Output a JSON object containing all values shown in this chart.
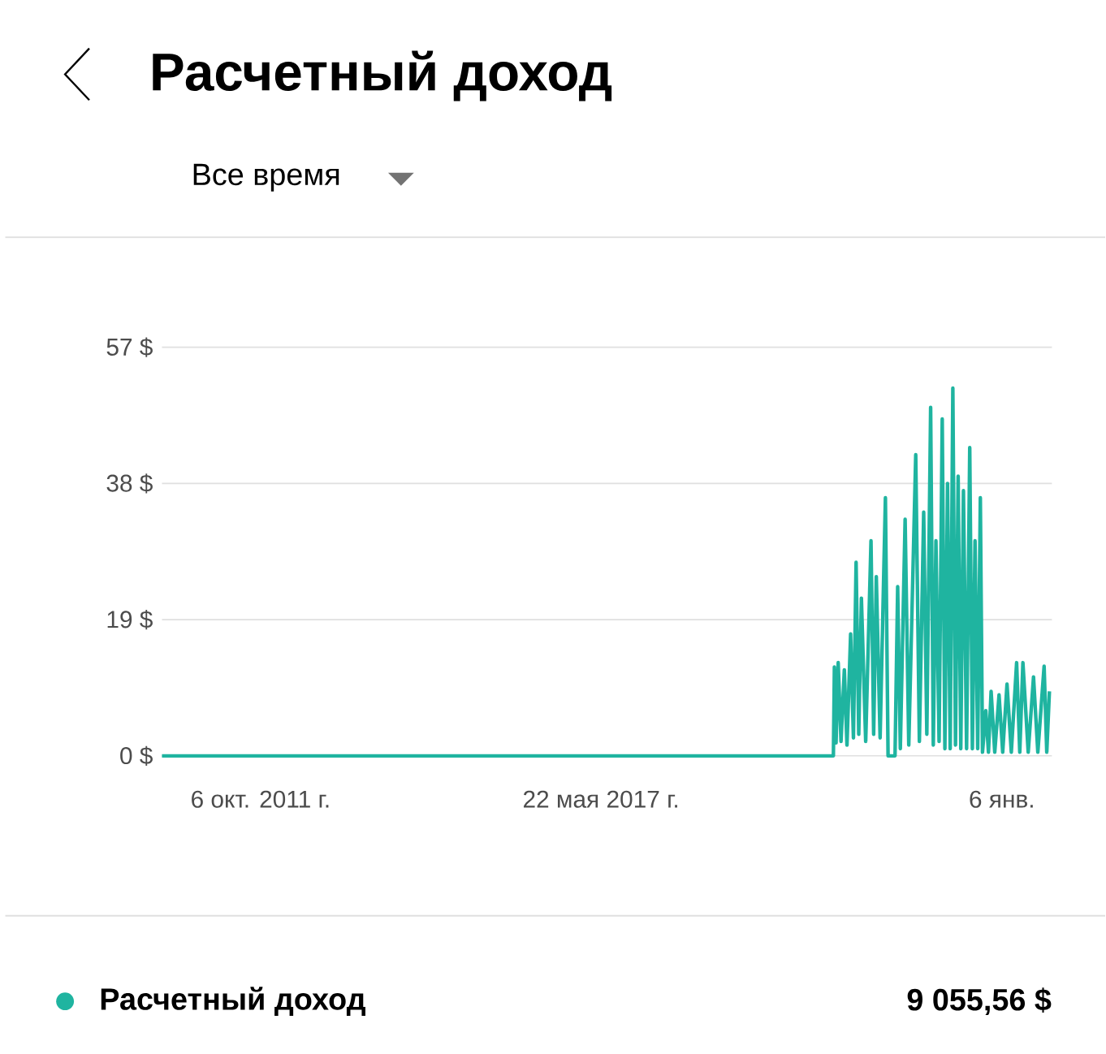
{
  "chart_data": {
    "type": "line",
    "title": "Расчетный доход",
    "subtitle": "Все время",
    "xlim": [
      "2010-02-18",
      "2024-11-03"
    ],
    "xticks": [
      {
        "value": "2011-10-06",
        "label": "6 окт. 2011 г."
      },
      {
        "value": "2017-05-22",
        "label": "22 мая 2017 г."
      },
      {
        "value": "2024-01-06",
        "label": "6 янв."
      }
    ],
    "ylim": [
      0,
      57
    ],
    "yticks": [
      {
        "value": 0,
        "label": "0 $"
      },
      {
        "value": 19,
        "label": "19 $"
      },
      {
        "value": 38,
        "label": "38 $"
      },
      {
        "value": 57,
        "label": "57 $"
      }
    ],
    "grid": "y",
    "legend": "bottom left",
    "annotations": [
      "9 055,56 $"
    ],
    "series": [
      {
        "name": "Расчетный доход",
        "color": "#1fb4a0",
        "x": [
          "2010-02-18",
          "2021-03-25",
          "2021-03-31",
          "2021-04-10",
          "2021-04-23",
          "2021-05-10",
          "2021-05-30",
          "2021-06-15",
          "2021-07-07",
          "2021-07-24",
          "2021-08-09",
          "2021-08-25",
          "2021-09-10",
          "2021-10-06",
          "2021-11-07",
          "2021-11-23",
          "2021-12-09",
          "2022-01-01",
          "2022-02-02",
          "2022-02-18",
          "2022-04-01",
          "2022-04-17",
          "2022-05-03",
          "2022-06-01",
          "2022-06-23",
          "2022-08-04",
          "2022-08-26",
          "2022-09-21",
          "2022-10-10",
          "2022-11-02",
          "2022-11-18",
          "2022-12-04",
          "2022-12-23",
          "2023-01-11",
          "2023-01-27",
          "2023-02-12",
          "2023-02-28",
          "2023-03-16",
          "2023-04-01",
          "2023-04-17",
          "2023-05-03",
          "2023-05-19",
          "2023-06-07",
          "2023-06-26",
          "2023-07-12",
          "2023-07-28",
          "2023-08-13",
          "2023-08-29",
          "2023-09-11",
          "2023-10-01",
          "2023-10-17",
          "2023-11-02",
          "2023-11-24",
          "2023-12-20",
          "2024-01-11",
          "2024-02-06",
          "2024-03-03",
          "2024-04-04",
          "2024-04-23",
          "2024-05-12",
          "2024-06-13",
          "2024-07-15",
          "2024-08-10",
          "2024-09-17",
          "2024-10-03",
          "2024-10-19"
        ],
        "values": [
          0,
          0,
          12.4,
          1.8,
          13,
          2,
          12,
          1.5,
          17,
          2.5,
          27,
          3,
          22,
          2,
          30,
          3,
          25,
          2.5,
          36,
          0,
          0,
          23.6,
          1,
          33,
          1.5,
          42,
          2,
          34,
          3,
          48.6,
          1.5,
          30,
          2,
          47,
          1,
          38,
          1,
          51.3,
          1.5,
          39,
          1,
          37,
          1,
          43,
          1,
          30,
          1,
          36,
          0.5,
          6.3,
          0.5,
          9,
          0.5,
          8.5,
          0.5,
          10,
          0.5,
          13,
          0.5,
          13,
          0.5,
          11,
          0.5,
          12.5,
          0.5,
          9
        ]
      }
    ]
  }
}
